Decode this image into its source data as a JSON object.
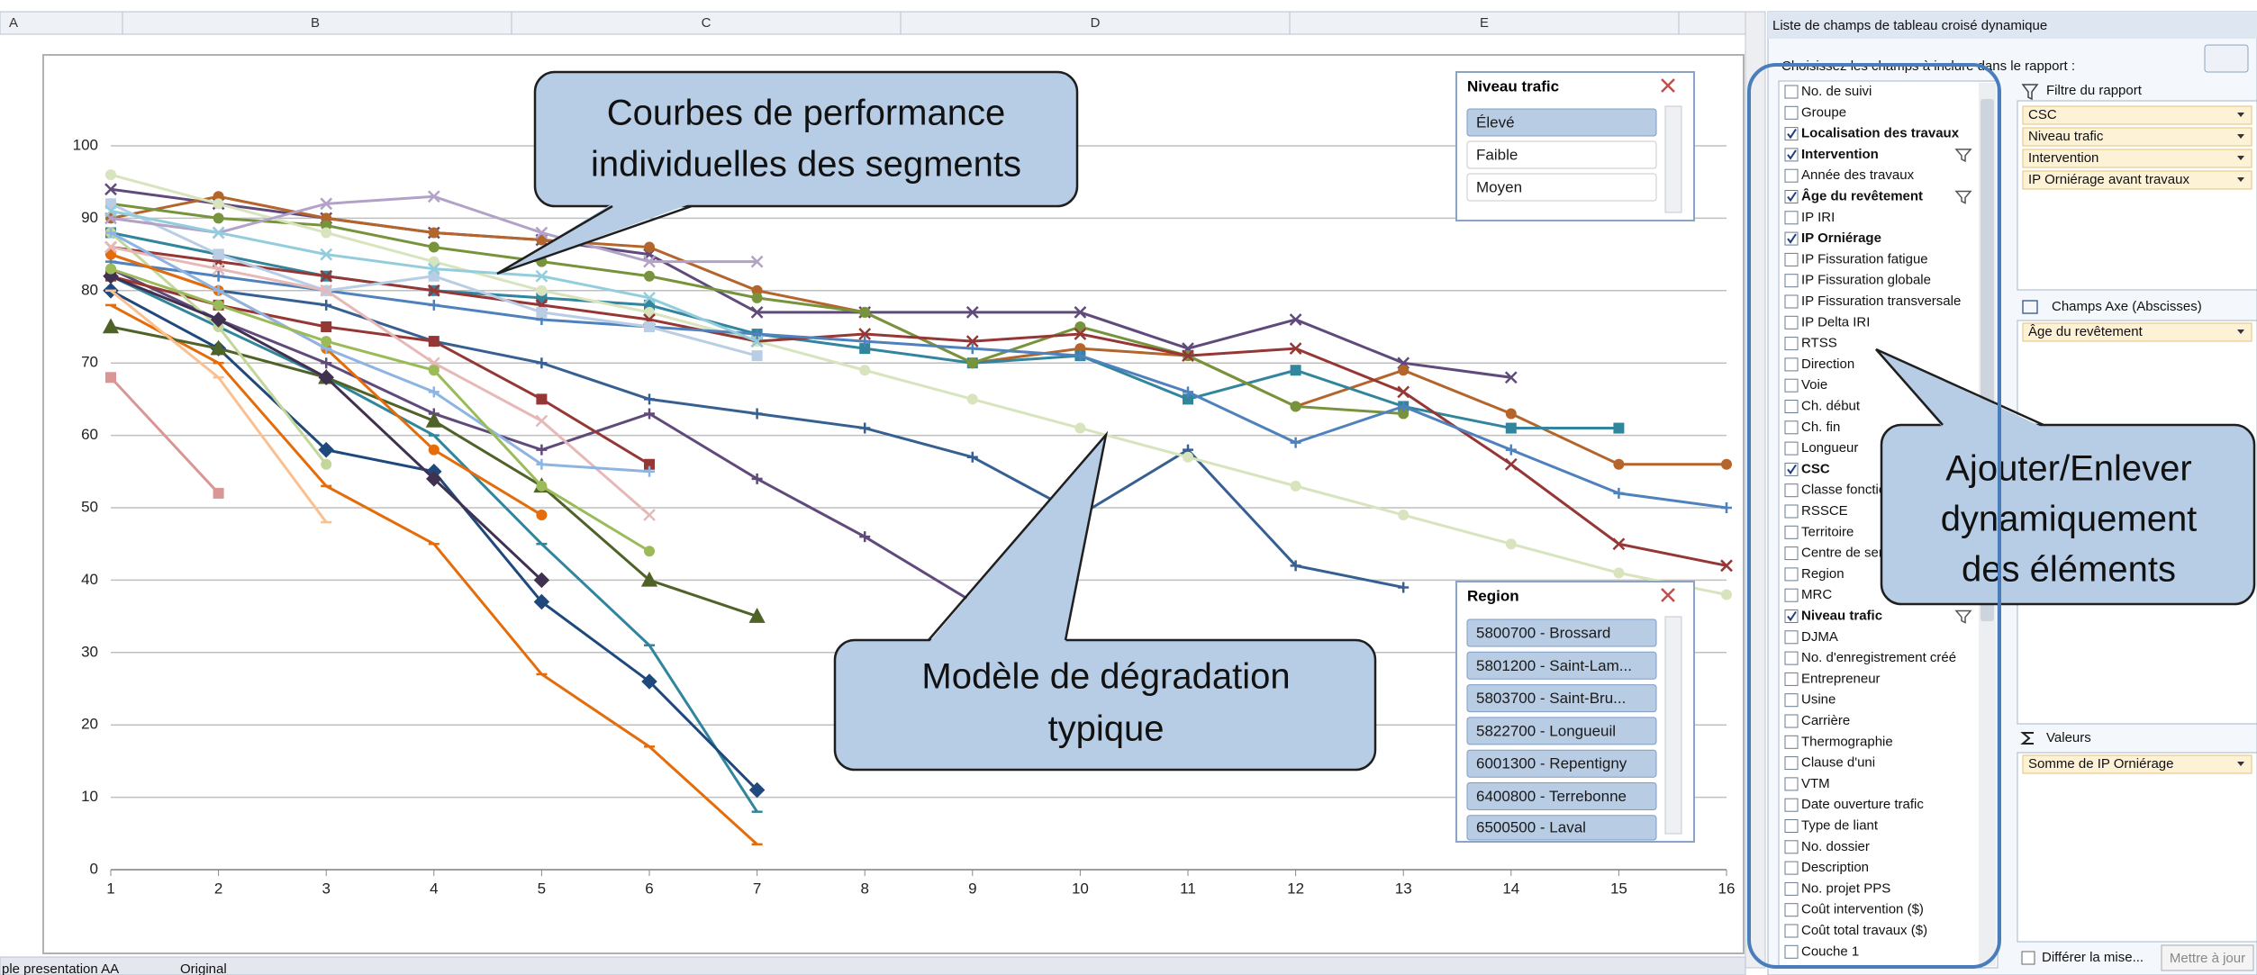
{
  "spreadsheet": {
    "columns": [
      "A",
      "B",
      "C",
      "D",
      "E"
    ],
    "sheet_tabs": [
      "ple presentation AA",
      "Original"
    ]
  },
  "chart_data": {
    "type": "line",
    "x": [
      1,
      2,
      3,
      4,
      5,
      6,
      7,
      8,
      9,
      10,
      11,
      12,
      13,
      14,
      15,
      16
    ],
    "xlim": [
      1,
      16
    ],
    "xticks": [
      1,
      2,
      3,
      4,
      5,
      6,
      7,
      8,
      9,
      10,
      11,
      12,
      13,
      14,
      15,
      16
    ],
    "ylim": [
      0,
      100
    ],
    "yticks": [
      0,
      10,
      20,
      30,
      40,
      50,
      60,
      70,
      80,
      90,
      100
    ],
    "grid": true,
    "series": [
      {
        "color": "#604a7b",
        "marker": "x",
        "values": [
          94,
          92,
          90,
          88,
          87,
          85,
          77,
          77,
          77,
          77,
          72,
          76,
          70,
          68,
          null,
          null
        ]
      },
      {
        "color": "#b3652b",
        "marker": "circle",
        "values": [
          90,
          93,
          90,
          88,
          87,
          86,
          80,
          77,
          70,
          72,
          71,
          64,
          69,
          63,
          56,
          56
        ]
      },
      {
        "color": "#31859c",
        "marker": "square",
        "values": [
          88,
          85,
          82,
          80,
          79,
          78,
          74,
          72,
          70,
          71,
          65,
          69,
          64,
          61,
          61,
          null
        ]
      },
      {
        "color": "#77933c",
        "marker": "circle",
        "values": [
          92,
          90,
          89,
          86,
          84,
          82,
          79,
          77,
          70,
          75,
          71,
          64,
          63,
          null,
          null,
          null
        ]
      },
      {
        "color": "#376092",
        "marker": "plus",
        "values": [
          85,
          80,
          78,
          73,
          70,
          65,
          63,
          61,
          57,
          49,
          58,
          42,
          39,
          null,
          null,
          null
        ]
      },
      {
        "color": "#d7e4bd",
        "marker": "circle",
        "values": [
          96,
          92,
          88,
          84,
          80,
          77,
          73,
          69,
          65,
          61,
          57,
          53,
          49,
          45,
          41,
          38
        ]
      },
      {
        "color": "#953735",
        "marker": "x",
        "values": [
          86,
          84,
          82,
          80,
          78,
          76,
          73,
          74,
          73,
          74,
          71,
          72,
          66,
          56,
          45,
          42
        ]
      },
      {
        "color": "#4f81bd",
        "marker": "plus",
        "values": [
          84,
          82,
          80,
          78,
          76,
          75,
          74,
          73,
          72,
          71,
          66,
          59,
          64,
          58,
          52,
          50
        ]
      },
      {
        "color": "#e46c0a",
        "marker": "dash",
        "values": [
          78,
          70,
          53,
          45,
          27,
          17,
          3.5,
          null,
          null,
          null,
          null,
          null,
          null,
          null,
          null,
          null
        ]
      },
      {
        "color": "#31859c",
        "marker": "dash",
        "values": [
          82,
          75,
          68,
          60,
          45,
          31,
          8,
          null,
          null,
          null,
          null,
          null,
          null,
          null,
          null,
          null
        ]
      },
      {
        "color": "#1f497d",
        "marker": "diamond",
        "values": [
          80,
          72,
          58,
          55,
          37,
          26,
          11,
          null,
          null,
          null,
          null,
          null,
          null,
          null,
          null,
          null
        ]
      },
      {
        "color": "#604a7b",
        "marker": "plus",
        "values": [
          83,
          76,
          70,
          63,
          58,
          63,
          54,
          46,
          37,
          null,
          null,
          null,
          null,
          null,
          null,
          null
        ]
      },
      {
        "color": "#d99694",
        "marker": "square",
        "values": [
          68,
          52,
          null,
          null,
          null,
          null,
          null,
          null,
          null,
          null,
          null,
          null,
          null,
          null,
          null,
          null
        ]
      },
      {
        "color": "#4f6228",
        "marker": "triangle",
        "values": [
          75,
          72,
          68,
          62,
          53,
          40,
          35,
          null,
          null,
          null,
          null,
          null,
          null,
          null,
          null,
          null
        ]
      },
      {
        "color": "#953735",
        "marker": "square",
        "values": [
          82,
          78,
          75,
          73,
          65,
          56,
          null,
          null,
          null,
          null,
          null,
          null,
          null,
          null,
          null,
          null
        ]
      },
      {
        "color": "#fac090",
        "marker": "dash",
        "values": [
          80,
          68,
          48,
          null,
          null,
          null,
          null,
          null,
          null,
          null,
          null,
          null,
          null,
          null,
          null,
          null
        ]
      },
      {
        "color": "#c3d69b",
        "marker": "circle",
        "values": [
          88,
          75,
          56,
          null,
          null,
          null,
          null,
          null,
          null,
          null,
          null,
          null,
          null,
          null,
          null,
          null
        ]
      },
      {
        "color": "#b9cde5",
        "marker": "square",
        "values": [
          92,
          85,
          80,
          82,
          77,
          75,
          71,
          null,
          null,
          null,
          null,
          null,
          null,
          null,
          null,
          null
        ]
      },
      {
        "color": "#b3a2c7",
        "marker": "x",
        "values": [
          90,
          88,
          92,
          93,
          88,
          84,
          84,
          null,
          null,
          null,
          null,
          null,
          null,
          null,
          null,
          null
        ]
      },
      {
        "color": "#403151",
        "marker": "diamond",
        "values": [
          82,
          76,
          68,
          54,
          40,
          null,
          null,
          null,
          null,
          null,
          null,
          null,
          null,
          null,
          null,
          null
        ]
      },
      {
        "color": "#e46c0a",
        "marker": "circle",
        "values": [
          85,
          80,
          72,
          58,
          49,
          null,
          null,
          null,
          null,
          null,
          null,
          null,
          null,
          null,
          null,
          null
        ]
      },
      {
        "color": "#93cddd",
        "marker": "x",
        "values": [
          91,
          88,
          85,
          83,
          82,
          79,
          73,
          null,
          null,
          null,
          null,
          null,
          null,
          null,
          null,
          null
        ]
      },
      {
        "color": "#e6b9b8",
        "marker": "x",
        "values": [
          86,
          83,
          80,
          70,
          62,
          49,
          null,
          null,
          null,
          null,
          null,
          null,
          null,
          null,
          null,
          null
        ]
      },
      {
        "color": "#8eb4e3",
        "marker": "plus",
        "values": [
          88,
          80,
          72,
          66,
          56,
          55,
          null,
          null,
          null,
          null,
          null,
          null,
          null,
          null,
          null,
          null
        ]
      },
      {
        "color": "#9bbb59",
        "marker": "circle",
        "values": [
          83,
          78,
          73,
          69,
          53,
          44,
          null,
          null,
          null,
          null,
          null,
          null,
          null,
          null,
          null,
          null
        ]
      }
    ]
  },
  "callouts": [
    {
      "lines": [
        "Courbes de performance",
        "individuelles des segments"
      ]
    },
    {
      "lines": [
        "Modèle de dégradation",
        "typique"
      ]
    },
    {
      "lines": [
        "Ajouter/Enlever",
        "dynamiquement",
        "des éléments"
      ]
    }
  ],
  "slicers": [
    {
      "title": "Niveau trafic",
      "items": [
        {
          "label": "Élevé",
          "selected": true
        },
        {
          "label": "Faible",
          "selected": false
        },
        {
          "label": "Moyen",
          "selected": false
        }
      ]
    },
    {
      "title": "Region",
      "items": [
        {
          "label": "5800700 - Brossard",
          "selected": true
        },
        {
          "label": "5801200 - Saint-Lam...",
          "selected": true
        },
        {
          "label": "5803700 - Saint-Bru...",
          "selected": true
        },
        {
          "label": "5822700 - Longueuil",
          "selected": true
        },
        {
          "label": "6001300 - Repentigny",
          "selected": true
        },
        {
          "label": "6400800 - Terrebonne",
          "selected": true
        },
        {
          "label": "6500500 - Laval",
          "selected": true
        }
      ]
    }
  ],
  "pivot_panel": {
    "title": "Liste de champs de tableau croisé dynamique",
    "instruction": "Choisissez les champs à inclure dans le rapport :",
    "fields": [
      {
        "label": "No. de suivi",
        "checked": false,
        "filtered": false
      },
      {
        "label": "Groupe",
        "checked": false,
        "filtered": false
      },
      {
        "label": "Localisation des travaux",
        "checked": true,
        "filtered": false
      },
      {
        "label": "Intervention",
        "checked": true,
        "filtered": true
      },
      {
        "label": "Année des travaux",
        "checked": false,
        "filtered": false
      },
      {
        "label": "Âge du revêtement",
        "checked": true,
        "filtered": true
      },
      {
        "label": "IP IRI",
        "checked": false,
        "filtered": false
      },
      {
        "label": "IP Orniérage",
        "checked": true,
        "filtered": false
      },
      {
        "label": "IP Fissuration fatigue",
        "checked": false,
        "filtered": false
      },
      {
        "label": "IP Fissuration globale",
        "checked": false,
        "filtered": false
      },
      {
        "label": "IP Fissuration transversale",
        "checked": false,
        "filtered": false
      },
      {
        "label": "IP Delta IRI",
        "checked": false,
        "filtered": false
      },
      {
        "label": "RTSS",
        "checked": false,
        "filtered": false
      },
      {
        "label": "Direction",
        "checked": false,
        "filtered": false
      },
      {
        "label": "Voie",
        "checked": false,
        "filtered": false
      },
      {
        "label": "Ch. début",
        "checked": false,
        "filtered": false
      },
      {
        "label": "Ch. fin",
        "checked": false,
        "filtered": false
      },
      {
        "label": "Longueur",
        "checked": false,
        "filtered": false
      },
      {
        "label": "CSC",
        "checked": true,
        "filtered": false
      },
      {
        "label": "Classe fonctionnelle",
        "checked": false,
        "filtered": false
      },
      {
        "label": "RSSCE",
        "checked": false,
        "filtered": false
      },
      {
        "label": "Territoire",
        "checked": false,
        "filtered": false
      },
      {
        "label": "Centre de services",
        "checked": false,
        "filtered": false
      },
      {
        "label": "Region",
        "checked": false,
        "filtered": false
      },
      {
        "label": "MRC",
        "checked": false,
        "filtered": false
      },
      {
        "label": "Niveau trafic",
        "checked": true,
        "filtered": true
      },
      {
        "label": "DJMA",
        "checked": false,
        "filtered": false
      },
      {
        "label": "No. d'enregistrement créé",
        "checked": false,
        "filtered": false
      },
      {
        "label": "Entrepreneur",
        "checked": false,
        "filtered": false
      },
      {
        "label": "Usine",
        "checked": false,
        "filtered": false
      },
      {
        "label": "Carrière",
        "checked": false,
        "filtered": false
      },
      {
        "label": "Thermographie",
        "checked": false,
        "filtered": false
      },
      {
        "label": "Clause d'uni",
        "checked": false,
        "filtered": false
      },
      {
        "label": "VTM",
        "checked": false,
        "filtered": false
      },
      {
        "label": "Date ouverture trafic",
        "checked": false,
        "filtered": false
      },
      {
        "label": "Type de liant",
        "checked": false,
        "filtered": false
      },
      {
        "label": "No. dossier",
        "checked": false,
        "filtered": false
      },
      {
        "label": "Description",
        "checked": false,
        "filtered": false
      },
      {
        "label": "No. projet PPS",
        "checked": false,
        "filtered": false
      },
      {
        "label": "Coût intervention ($)",
        "checked": false,
        "filtered": false
      },
      {
        "label": "Coût total travaux ($)",
        "checked": false,
        "filtered": false
      },
      {
        "label": "Couche 1",
        "checked": false,
        "filtered": false
      }
    ],
    "report_filter": {
      "title": "Filtre du rapport",
      "items": [
        "CSC",
        "Niveau trafic",
        "Intervention",
        "IP Orniérage avant travaux"
      ]
    },
    "axis_fields": {
      "title": "Champs Axe (Abscisses)",
      "items": [
        "Âge du revêtement"
      ]
    },
    "values": {
      "title": "Valeurs",
      "items": [
        "Somme de IP Orniérage"
      ]
    },
    "defer_label": "Différer la mise...",
    "update_button": "Mettre à jour"
  }
}
